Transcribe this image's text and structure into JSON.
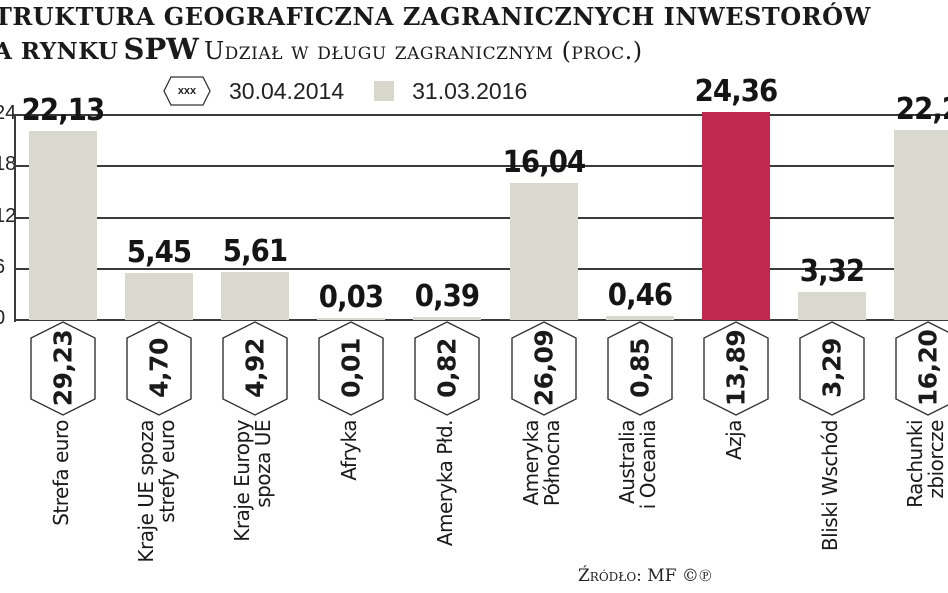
{
  "header": {
    "title": "truktura geograficzna zagranicznych inwestorów",
    "subtitle_bold": "a rynku",
    "subtitle_big": "SPW",
    "subtitle_rest": "Udział w długu zagranicznym (proc.)"
  },
  "legend": {
    "hex_marker_text": "xxx",
    "series1_label": "30.04.2014",
    "series2_label": "31.03.2016"
  },
  "y_ticks": [
    "0",
    "6",
    "12",
    "18",
    "24"
  ],
  "bars": [
    {
      "category": [
        "Strefa euro"
      ],
      "value_2016": "22,13",
      "value_2014": "29,23"
    },
    {
      "category": [
        "Kraje UE spoza",
        "strefy euro"
      ],
      "value_2016": "5,45",
      "value_2014": "4,70"
    },
    {
      "category": [
        "Kraje Europy",
        "spoza UE"
      ],
      "value_2016": "5,61",
      "value_2014": "4,92"
    },
    {
      "category": [
        "Afryka"
      ],
      "value_2016": "0,03",
      "value_2014": "0,01"
    },
    {
      "category": [
        "Ameryka Płd."
      ],
      "value_2016": "0,39",
      "value_2014": "0,82"
    },
    {
      "category": [
        "Ameryka",
        "Północna"
      ],
      "value_2016": "16,04",
      "value_2014": "26,09"
    },
    {
      "category": [
        "Australia",
        "i Oceania"
      ],
      "value_2016": "0,46",
      "value_2014": "0,85"
    },
    {
      "category": [
        "Azja"
      ],
      "value_2016": "24,36",
      "value_2014": "13,89"
    },
    {
      "category": [
        "Bliski Wschód"
      ],
      "value_2016": "3,32",
      "value_2014": "3,29"
    },
    {
      "category": [
        "Rachunki",
        "zbiorcze"
      ],
      "value_2016": "22,2",
      "value_2014": "16,20"
    }
  ],
  "source": "Źródło: MF ©℗",
  "colors": {
    "bar_default": "#d9d9cf",
    "bar_highlight": "#c0284e",
    "gridline": "#3a3a3a"
  },
  "chart_data": {
    "type": "bar",
    "title": "Struktura geograficzna zagranicznych inwestorów na rynku SPW",
    "subtitle": "Udział w długu zagranicznym (proc.)",
    "categories": [
      "Strefa euro",
      "Kraje UE spoza strefy euro",
      "Kraje Europy spoza UE",
      "Afryka",
      "Ameryka Płd.",
      "Ameryka Północna",
      "Australia i Oceania",
      "Azja",
      "Bliski Wschód",
      "Rachunki zbiorcze"
    ],
    "series": [
      {
        "name": "31.03.2016",
        "values": [
          22.13,
          5.45,
          5.61,
          0.03,
          0.39,
          16.04,
          0.46,
          24.36,
          3.32,
          22.2
        ],
        "render": "bars"
      },
      {
        "name": "30.04.2014",
        "values": [
          29.23,
          4.7,
          4.92,
          0.01,
          0.82,
          26.09,
          0.85,
          13.89,
          3.29,
          16.2
        ],
        "render": "hexagon labels"
      }
    ],
    "highlighted_category": "Azja",
    "xlabel": "",
    "ylabel": "proc.",
    "ylim": [
      0,
      24
    ],
    "yticks": [
      0,
      6,
      12,
      18,
      24
    ],
    "grid": true,
    "legend_position": "top",
    "source": "Źródło: MF"
  }
}
